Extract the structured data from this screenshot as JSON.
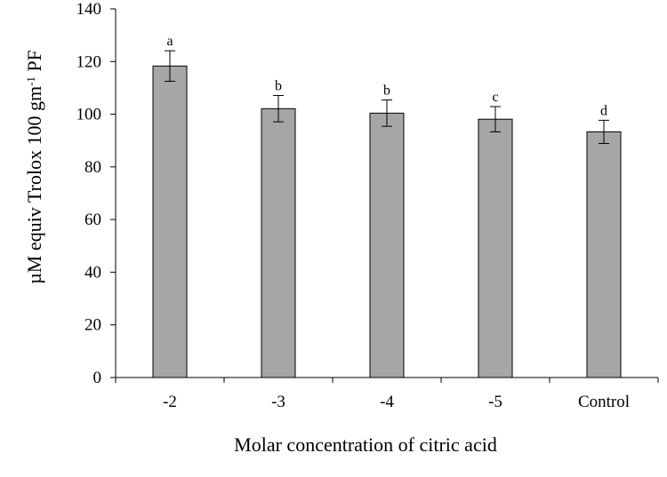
{
  "chart_data": {
    "type": "bar",
    "categories": [
      "-2",
      "-3",
      "-4",
      "-5",
      "Control"
    ],
    "values": [
      118.3,
      102.1,
      100.4,
      98.1,
      93.3
    ],
    "error": [
      5.8,
      5.0,
      5.0,
      4.8,
      4.4
    ],
    "significance_letters": [
      "a",
      "b",
      "b",
      "c",
      "d"
    ],
    "xlabel": "Molar concentration of citric acid",
    "ylabel": {
      "main": "µM equiv Trolox 100 gm",
      "superscript": "-1",
      "suffix": " PF"
    },
    "ylim": [
      0,
      140
    ],
    "yticks": [
      0,
      20,
      40,
      60,
      80,
      100,
      120,
      140
    ],
    "bar_color": "#A6A6A6",
    "bar_edge_color": "#000000",
    "grid": false,
    "legend": "none"
  }
}
